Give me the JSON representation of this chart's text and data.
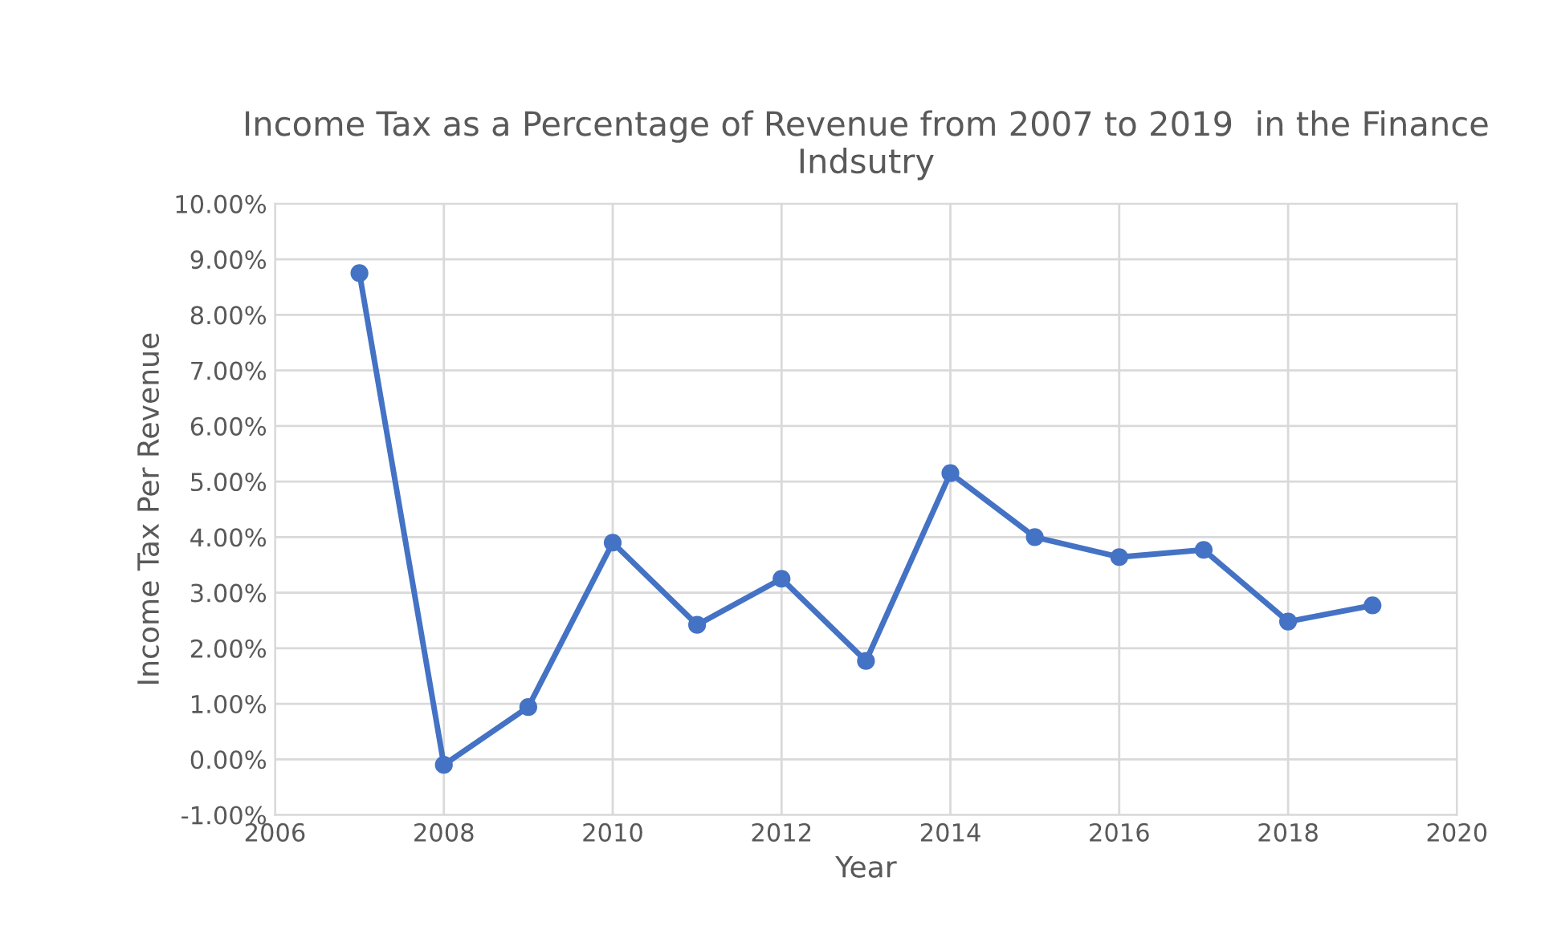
{
  "chart_data": {
    "type": "line",
    "title": "Income Tax as a Percentage of Revenue from 2007 to 2019  in the Finance Indsutry",
    "xlabel": "Year",
    "ylabel": "Income Tax Per Revenue",
    "x": [
      2007,
      2008,
      2009,
      2010,
      2011,
      2012,
      2013,
      2014,
      2015,
      2016,
      2017,
      2018,
      2019
    ],
    "series": [
      {
        "color": "#4472c4",
        "values": [
          8.75,
          -0.1,
          0.94,
          3.9,
          2.42,
          3.25,
          1.77,
          5.15,
          4.0,
          3.64,
          3.77,
          2.48,
          2.77
        ]
      }
    ],
    "xlim": [
      2006,
      2020
    ],
    "xticks": [
      2006,
      2008,
      2010,
      2012,
      2014,
      2016,
      2018,
      2020
    ],
    "ylim": [
      -1,
      10
    ],
    "yticks": [
      {
        "value": -1,
        "label": "-1.00%"
      },
      {
        "value": 0,
        "label": "0.00%"
      },
      {
        "value": 1,
        "label": "1.00%"
      },
      {
        "value": 2,
        "label": "2.00%"
      },
      {
        "value": 3,
        "label": "3.00%"
      },
      {
        "value": 4,
        "label": "4.00%"
      },
      {
        "value": 5,
        "label": "5.00%"
      },
      {
        "value": 6,
        "label": "6.00%"
      },
      {
        "value": 7,
        "label": "7.00%"
      },
      {
        "value": 8,
        "label": "8.00%"
      },
      {
        "value": 9,
        "label": "9.00%"
      },
      {
        "value": 10,
        "label": "10.00%"
      }
    ],
    "grid": true,
    "marker": "circle",
    "line_style": "solid"
  }
}
